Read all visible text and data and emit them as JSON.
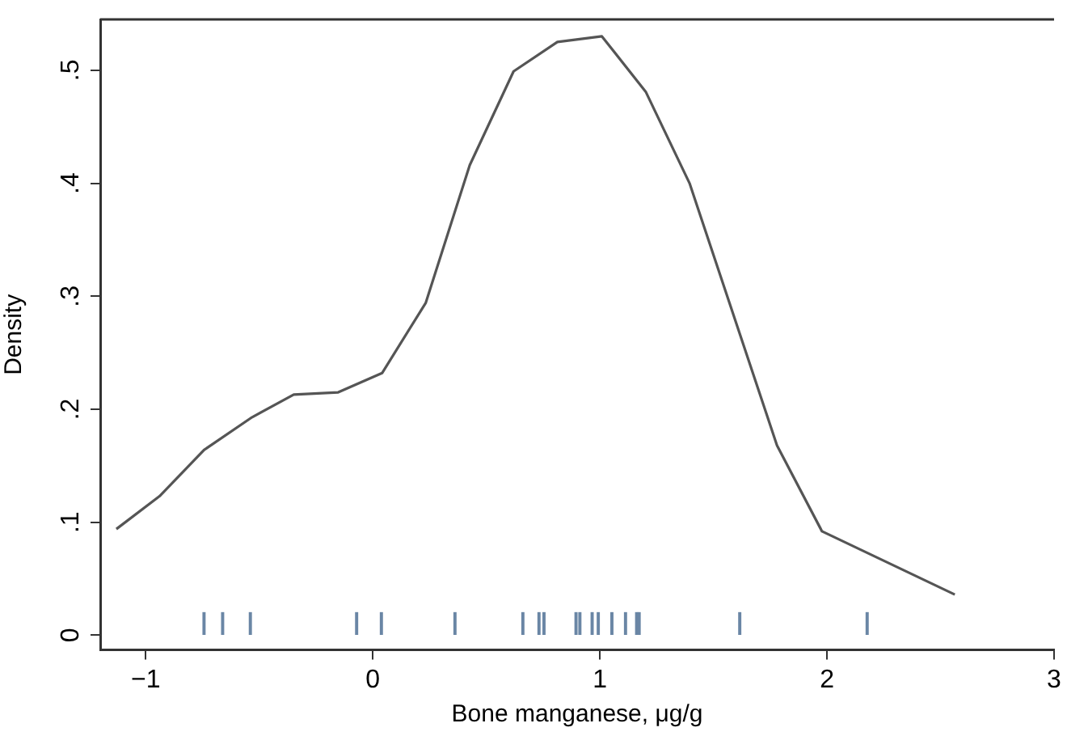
{
  "chart_data": {
    "type": "line",
    "xlabel": "Bone manganese, μg/g",
    "ylabel": "Density",
    "xlim": [
      -1.2,
      3
    ],
    "xticks": [
      {
        "value": -1,
        "label": "−1"
      },
      0,
      1,
      2,
      3
    ],
    "ylim": [
      -0.013,
      0.545
    ],
    "yticks": [
      0,
      {
        "value": 0.1,
        "label": ".1"
      },
      {
        "value": 0.2,
        "label": ".2"
      },
      {
        "value": 0.3,
        "label": ".3"
      },
      {
        "value": 0.4,
        "label": ".4"
      },
      {
        "value": 0.5,
        "label": ".5"
      }
    ],
    "grid": false,
    "legend": false,
    "series": [
      {
        "color": "#555555",
        "marker": "none",
        "x": [
          -1.129,
          -0.939,
          -0.743,
          -0.531,
          -0.348,
          -0.152,
          0.041,
          0.233,
          0.427,
          0.62,
          0.813,
          1.009,
          1.202,
          1.395,
          1.78,
          1.978,
          2.563
        ],
        "values": [
          0.094,
          0.123,
          0.164,
          0.193,
          0.213,
          0.215,
          0.232,
          0.294,
          0.416,
          0.499,
          0.525,
          0.53,
          0.481,
          0.4,
          0.168,
          0.092,
          0.036
        ]
      },
      {
        "type": "bar",
        "color": "#6a86a5",
        "x": [
          -0.743,
          -0.661,
          -0.539,
          -0.071,
          0.038,
          0.362,
          0.661,
          0.732,
          0.754,
          0.895,
          0.912,
          0.966,
          0.993,
          1.053,
          1.113,
          1.162,
          1.173,
          1.616,
          2.177
        ],
        "values": [
          0.02,
          0.02,
          0.02,
          0.02,
          0.02,
          0.02,
          0.02,
          0.02,
          0.02,
          0.02,
          0.02,
          0.02,
          0.02,
          0.02,
          0.02,
          0.02,
          0.02,
          0.02,
          0.02
        ]
      }
    ]
  }
}
